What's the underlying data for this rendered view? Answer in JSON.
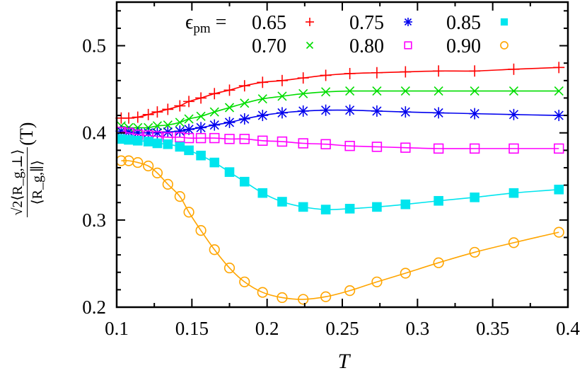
{
  "chart_data": {
    "type": "line",
    "xlabel": "T",
    "ylabel": {
      "numerator": "√2⟨R_g,⊥⟩",
      "denominator": "⟨R_g,∥⟩",
      "suffix": "(T)"
    },
    "xlim": [
      0.1,
      0.4
    ],
    "ylim": [
      0.2,
      0.55
    ],
    "xticks": [
      "0.1",
      "0.15",
      "0.2",
      "0.25",
      "0.3",
      "0.35",
      "0.4"
    ],
    "yticks": [
      "0.2",
      "0.3",
      "0.4",
      "0.5"
    ],
    "grid": false,
    "legend_placement": "top",
    "legend_prefix": "ϵpm =",
    "x": [
      0.103,
      0.108,
      0.114,
      0.121,
      0.127,
      0.134,
      0.142,
      0.148,
      0.156,
      0.165,
      0.175,
      0.185,
      0.197,
      0.21,
      0.224,
      0.239,
      0.255,
      0.273,
      0.292,
      0.314,
      0.338,
      0.364,
      0.394
    ],
    "series": [
      {
        "name": "0.65",
        "color": "#ff0000",
        "marker": "plus",
        "values": [
          0.417,
          0.417,
          0.418,
          0.421,
          0.424,
          0.427,
          0.431,
          0.436,
          0.44,
          0.445,
          0.449,
          0.454,
          0.458,
          0.46,
          0.463,
          0.466,
          0.468,
          0.469,
          0.47,
          0.471,
          0.471,
          0.473,
          0.475
        ]
      },
      {
        "name": "0.70",
        "color": "#00dd00",
        "marker": "cross",
        "values": [
          0.408,
          0.406,
          0.406,
          0.406,
          0.408,
          0.409,
          0.412,
          0.416,
          0.419,
          0.424,
          0.429,
          0.434,
          0.439,
          0.442,
          0.445,
          0.447,
          0.448,
          0.448,
          0.448,
          0.448,
          0.448,
          0.448,
          0.448
        ]
      },
      {
        "name": "0.75",
        "color": "#0000ee",
        "marker": "star",
        "values": [
          0.402,
          0.401,
          0.4,
          0.4,
          0.4,
          0.401,
          0.402,
          0.404,
          0.406,
          0.409,
          0.412,
          0.416,
          0.42,
          0.423,
          0.425,
          0.426,
          0.426,
          0.425,
          0.424,
          0.423,
          0.422,
          0.421,
          0.42
        ]
      },
      {
        "name": "0.80",
        "color": "#ff00ff",
        "marker": "open-square",
        "values": [
          0.401,
          0.4,
          0.398,
          0.397,
          0.396,
          0.395,
          0.395,
          0.394,
          0.394,
          0.394,
          0.393,
          0.393,
          0.391,
          0.39,
          0.388,
          0.387,
          0.385,
          0.384,
          0.383,
          0.382,
          0.382,
          0.382,
          0.382
        ]
      },
      {
        "name": "0.85",
        "color": "#00e5ee",
        "marker": "filled-square",
        "values": [
          0.393,
          0.392,
          0.391,
          0.39,
          0.388,
          0.387,
          0.384,
          0.38,
          0.374,
          0.366,
          0.355,
          0.344,
          0.331,
          0.321,
          0.315,
          0.312,
          0.313,
          0.315,
          0.318,
          0.322,
          0.326,
          0.331,
          0.335
        ]
      },
      {
        "name": "0.90",
        "color": "#ffa500",
        "marker": "open-circle",
        "values": [
          0.368,
          0.368,
          0.366,
          0.362,
          0.354,
          0.341,
          0.327,
          0.309,
          0.288,
          0.266,
          0.245,
          0.229,
          0.217,
          0.211,
          0.209,
          0.212,
          0.219,
          0.229,
          0.239,
          0.251,
          0.263,
          0.274,
          0.286
        ]
      }
    ]
  }
}
